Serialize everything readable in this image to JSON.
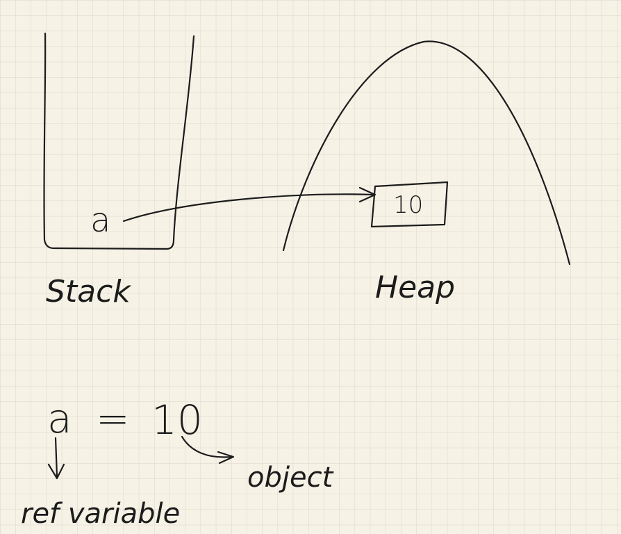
{
  "stack": {
    "label": "Stack",
    "variable": "a"
  },
  "heap": {
    "label": "Heap",
    "object_value": "10"
  },
  "statement": {
    "variable": "a",
    "operator": "=",
    "value": "10"
  },
  "annotations": {
    "variable_note": "ref variable",
    "value_note": "object"
  },
  "colors": {
    "paper": "#f6f2e6",
    "grid": "#d9d8c9",
    "ink": "#1c1c1c"
  }
}
